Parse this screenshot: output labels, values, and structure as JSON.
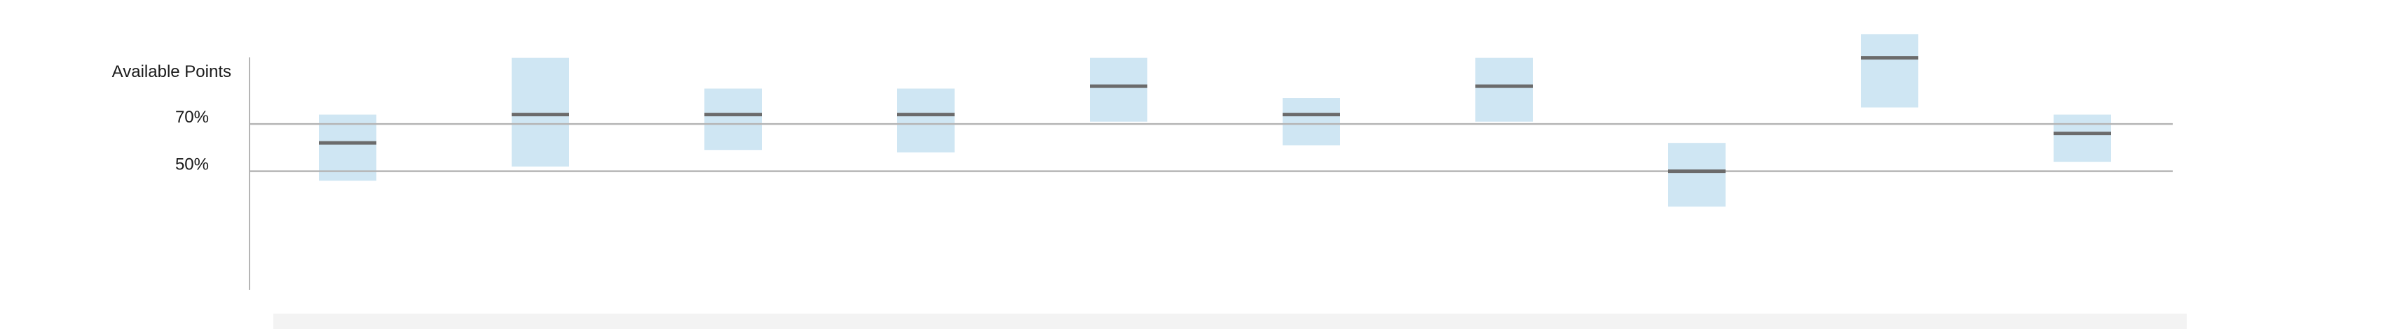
{
  "chart_data": {
    "type": "box",
    "ylabel": "Available Points",
    "reference_lines": [
      {
        "value": 70,
        "label": "70%"
      },
      {
        "value": 50,
        "label": "50%"
      }
    ],
    "y_range": [
      -0.2,
      98.2
    ],
    "grid": false,
    "legend": "none",
    "categories": [
      "",
      "",
      "",
      "",
      "",
      "",
      "",
      "",
      "",
      ""
    ],
    "ranges": [
      {
        "low": 46,
        "median": 62,
        "high": 74
      },
      {
        "low": 52,
        "median": 74,
        "high": 98
      },
      {
        "low": 59,
        "median": 74,
        "high": 85
      },
      {
        "low": 58,
        "median": 74,
        "high": 85
      },
      {
        "low": 71,
        "median": 86,
        "high": 98
      },
      {
        "low": 61,
        "median": 74,
        "high": 81
      },
      {
        "low": 71,
        "median": 86,
        "high": 98
      },
      {
        "low": 35,
        "median": 50,
        "high": 62
      },
      {
        "low": 77,
        "median": 98,
        "high": 108
      },
      {
        "low": 54,
        "median": 66,
        "high": 74
      }
    ],
    "colors": {
      "box": "#cfe6f3",
      "median": "#6b6b6b",
      "reference_line": "#b5b5b5",
      "axis": "#b5b5b5"
    }
  }
}
